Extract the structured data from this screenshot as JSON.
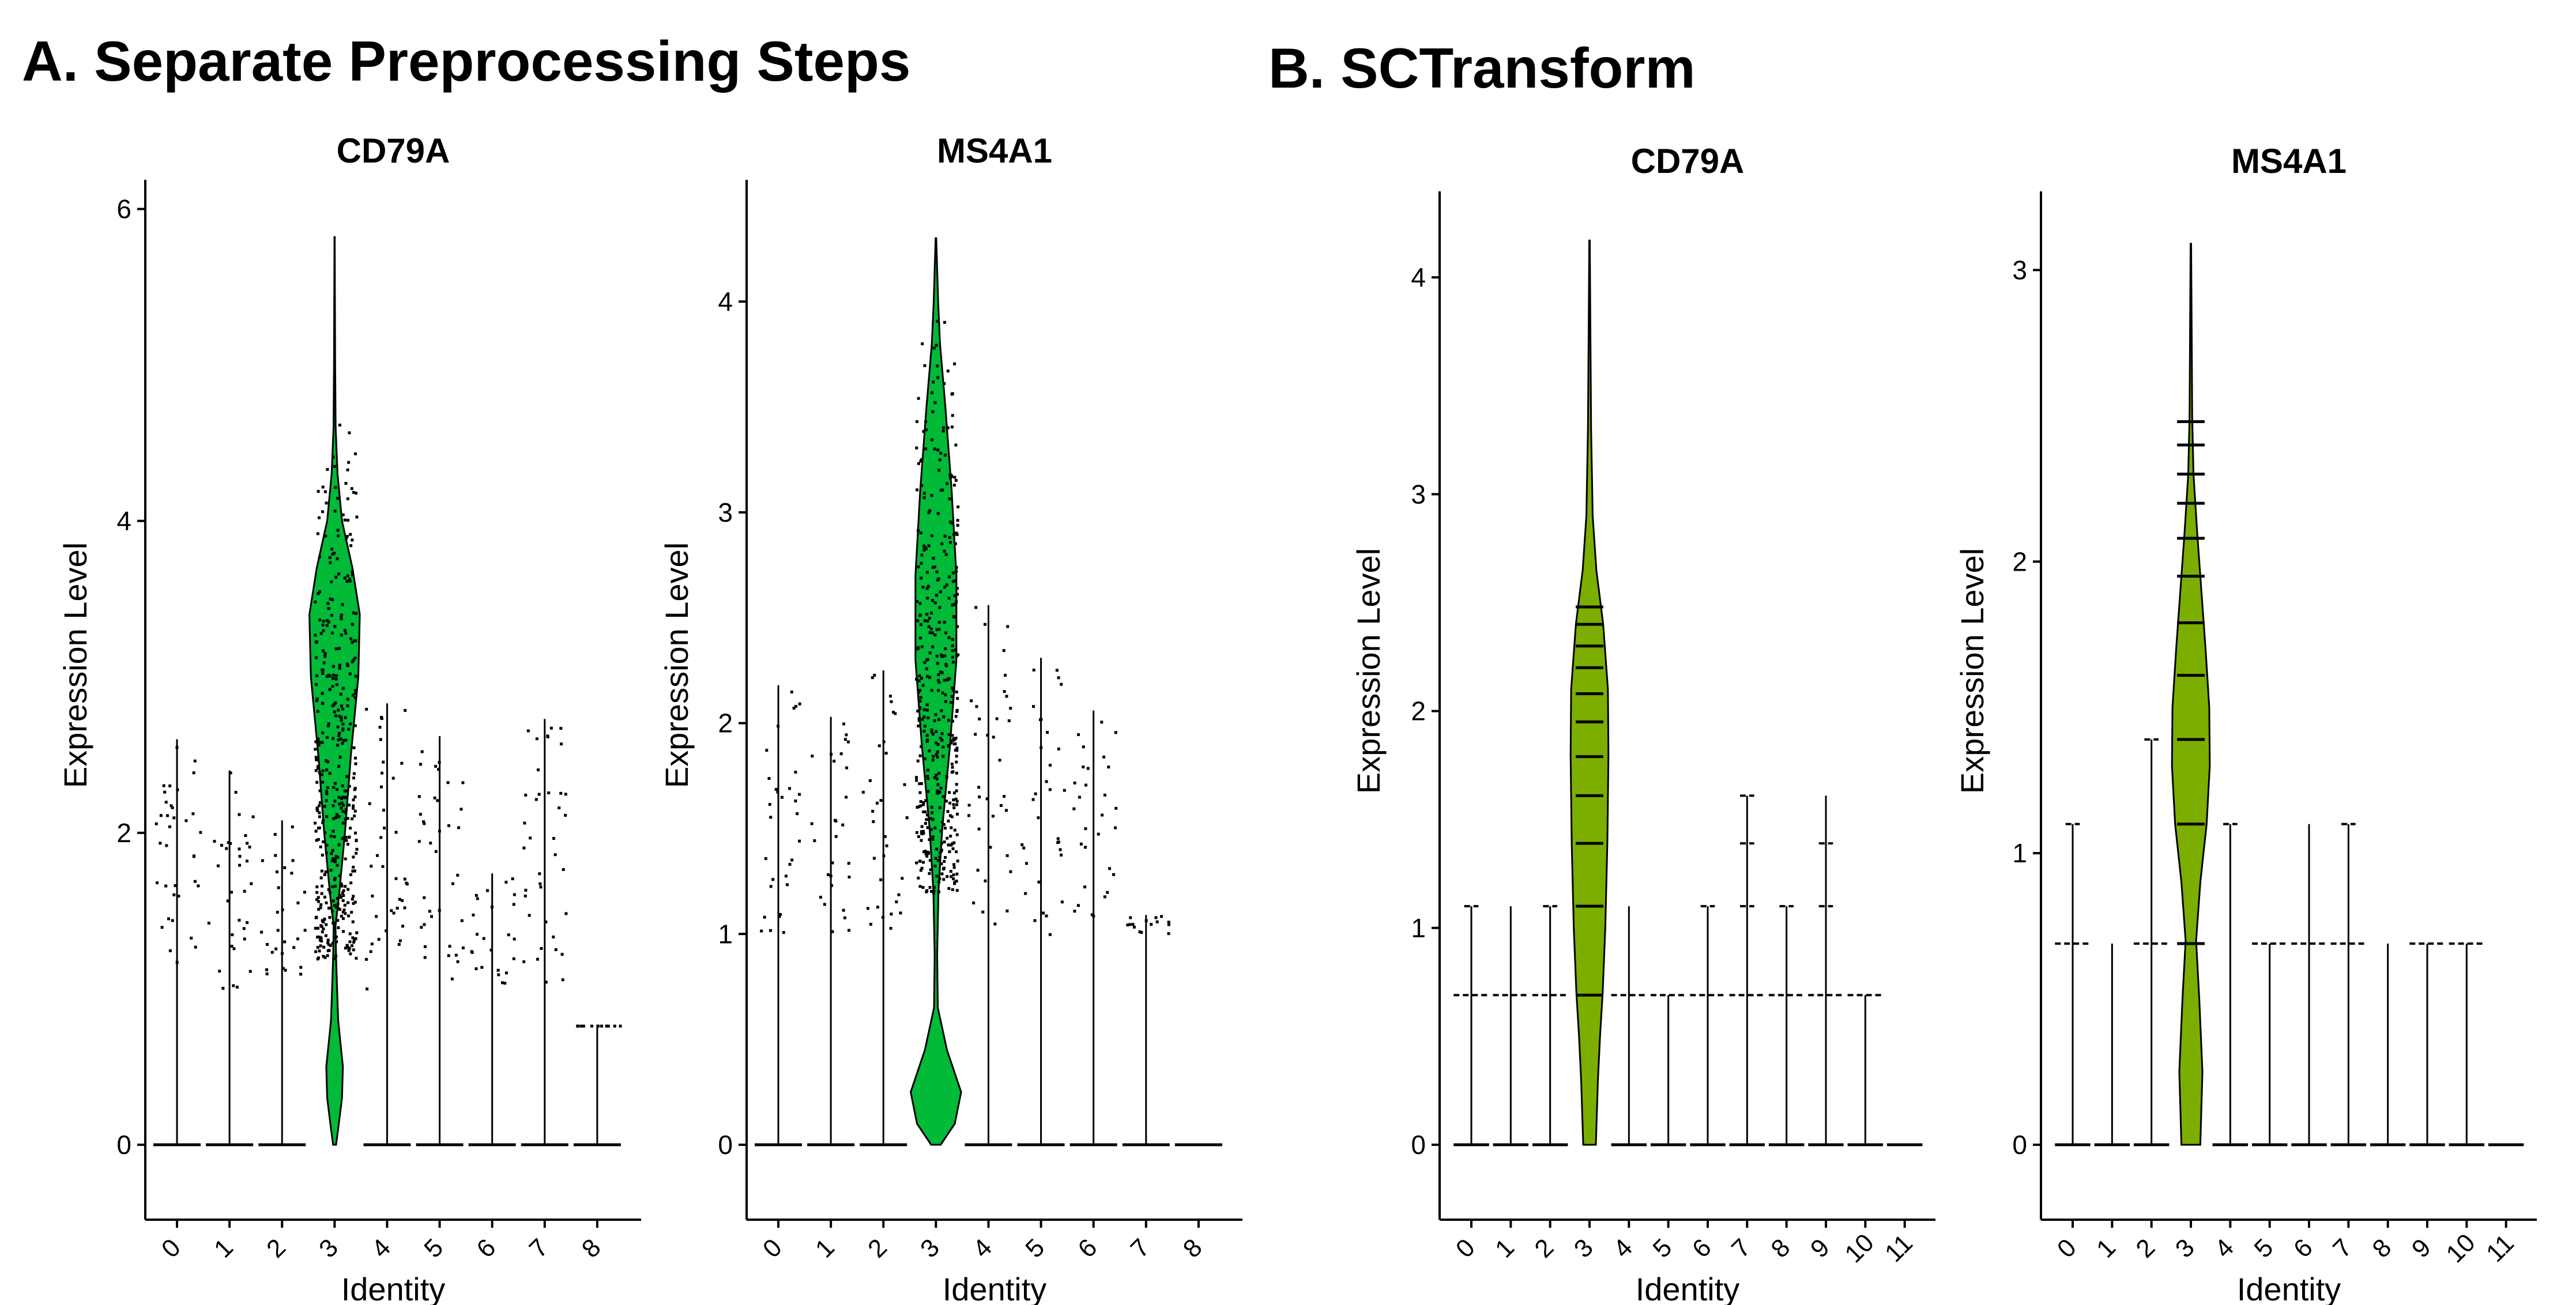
{
  "sections": [
    {
      "title": "A. Separate Preprocessing Steps"
    },
    {
      "title": "B. SCTransform"
    }
  ],
  "colors": {
    "panel_a_fill": "#00BA38",
    "panel_b_fill": "#7CAE00",
    "outline": "#000000",
    "points": "#000000"
  },
  "chart_data": [
    {
      "type": "violin",
      "title": "CD79A",
      "xlabel": "Identity",
      "ylabel": "Expression Level",
      "categories": [
        "0",
        "1",
        "2",
        "3",
        "4",
        "5",
        "6",
        "7",
        "8"
      ],
      "yticks": [
        0,
        2,
        4,
        6
      ],
      "ylim": [
        0,
        6.1
      ],
      "fill": "#00BA38",
      "max_values": [
        2.6,
        2.4,
        2.08,
        5.82,
        2.83,
        2.62,
        1.74,
        2.73,
        0.77
      ],
      "main_violin": {
        "category": "3",
        "profile": [
          [
            0,
            0.5
          ],
          [
            0.1,
            1.2
          ],
          [
            0.3,
            2.5
          ],
          [
            0.5,
            2.8
          ],
          [
            0.8,
            1.2
          ],
          [
            1.2,
            0.5
          ],
          [
            1.4,
            0.3
          ],
          [
            1.6,
            1.5
          ],
          [
            2.0,
            3.5
          ],
          [
            2.5,
            5.5
          ],
          [
            3.0,
            8.0
          ],
          [
            3.4,
            8.5
          ],
          [
            3.7,
            6.0
          ],
          [
            4.0,
            2.5
          ],
          [
            4.3,
            1.0
          ],
          [
            4.6,
            0.35
          ],
          [
            5.0,
            0.2
          ],
          [
            5.5,
            0.1
          ],
          [
            5.82,
            0.05
          ]
        ]
      }
    },
    {
      "type": "violin",
      "title": "MS4A1",
      "xlabel": "Identity",
      "ylabel": "Expression Level",
      "categories": [
        "0",
        "1",
        "2",
        "3",
        "4",
        "5",
        "6",
        "7",
        "8"
      ],
      "yticks": [
        0,
        1,
        2,
        3,
        4
      ],
      "ylim": [
        0,
        4.4
      ],
      "fill": "#00BA38",
      "max_values": [
        2.18,
        2.03,
        2.25,
        4.3,
        2.56,
        2.31,
        2.06,
        1.09,
        0.0
      ],
      "main_violin": {
        "category": "3",
        "profile": [
          [
            0,
            1.5
          ],
          [
            0.1,
            6.0
          ],
          [
            0.25,
            8.0
          ],
          [
            0.45,
            3.5
          ],
          [
            0.65,
            0.6
          ],
          [
            0.9,
            0.4
          ],
          [
            1.2,
            0.8
          ],
          [
            1.5,
            2.0
          ],
          [
            1.9,
            4.5
          ],
          [
            2.3,
            6.5
          ],
          [
            2.7,
            6.5
          ],
          [
            3.1,
            5.0
          ],
          [
            3.5,
            3.0
          ],
          [
            3.8,
            1.3
          ],
          [
            4.0,
            0.7
          ],
          [
            4.3,
            0.1
          ]
        ]
      }
    },
    {
      "type": "violin",
      "title": "CD79A",
      "xlabel": "Identity",
      "ylabel": "Expression Level",
      "categories": [
        "0",
        "1",
        "2",
        "3",
        "4",
        "5",
        "6",
        "7",
        "8",
        "9",
        "10",
        "11"
      ],
      "yticks": [
        0,
        1,
        2,
        3,
        4
      ],
      "ylim": [
        0,
        4.35
      ],
      "fill": "#7CAE00",
      "max_values": [
        1.1,
        1.1,
        1.1,
        4.17,
        1.1,
        0.69,
        1.1,
        1.61,
        1.1,
        1.61,
        0.69,
        0.0
      ],
      "main_violin": {
        "category": "3",
        "profile": [
          [
            0,
            1.2
          ],
          [
            0.3,
            1.6
          ],
          [
            0.5,
            2.0
          ],
          [
            0.7,
            2.5
          ],
          [
            1.0,
            3.0
          ],
          [
            1.4,
            3.4
          ],
          [
            1.8,
            3.6
          ],
          [
            2.1,
            3.5
          ],
          [
            2.4,
            2.6
          ],
          [
            2.65,
            1.3
          ],
          [
            2.9,
            0.6
          ],
          [
            3.3,
            0.3
          ],
          [
            3.8,
            0.15
          ],
          [
            4.17,
            0.05
          ]
        ]
      }
    },
    {
      "type": "violin",
      "title": "MS4A1",
      "xlabel": "Identity",
      "ylabel": "Expression Level",
      "categories": [
        "0",
        "1",
        "2",
        "3",
        "4",
        "5",
        "6",
        "7",
        "8",
        "9",
        "10",
        "11"
      ],
      "yticks": [
        0,
        1,
        2,
        3
      ],
      "ylim": [
        0,
        3.25
      ],
      "fill": "#7CAE00",
      "max_values": [
        1.1,
        0.69,
        1.39,
        3.09,
        1.1,
        0.69,
        1.1,
        1.1,
        0.69,
        0.69,
        0.69,
        0.0
      ],
      "main_violin": {
        "category": "3",
        "profile": [
          [
            0,
            1.8
          ],
          [
            0.25,
            2.2
          ],
          [
            0.5,
            1.6
          ],
          [
            0.7,
            1.0
          ],
          [
            0.9,
            1.8
          ],
          [
            1.1,
            3.0
          ],
          [
            1.3,
            3.6
          ],
          [
            1.5,
            3.5
          ],
          [
            1.7,
            2.8
          ],
          [
            1.9,
            2.0
          ],
          [
            2.1,
            1.2
          ],
          [
            2.3,
            0.5
          ],
          [
            2.5,
            0.25
          ],
          [
            2.8,
            0.15
          ],
          [
            3.09,
            0.05
          ]
        ]
      }
    }
  ]
}
